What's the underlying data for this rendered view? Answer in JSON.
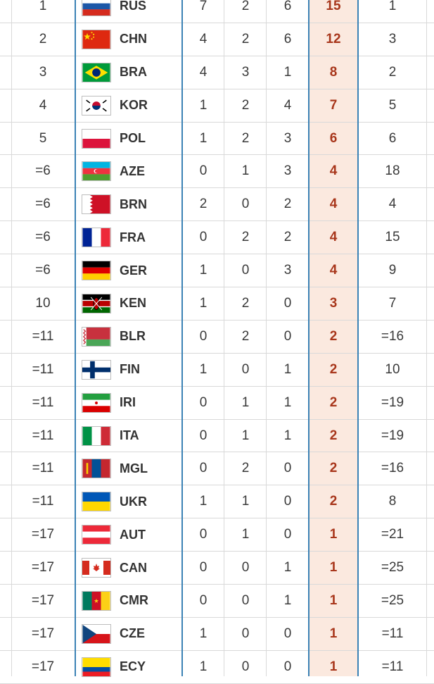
{
  "colors": {
    "divider_blue": "#3b82b5",
    "total_text": "#a8361b",
    "total_bg": "#fbe9df"
  },
  "rows": [
    {
      "rank": "1",
      "code": "RUS",
      "flag": "russia-flag",
      "gold": "7",
      "silver": "2",
      "bronze": "6",
      "total": "15",
      "prev": "1"
    },
    {
      "rank": "2",
      "code": "CHN",
      "flag": "china-flag",
      "gold": "4",
      "silver": "2",
      "bronze": "6",
      "total": "12",
      "prev": "3"
    },
    {
      "rank": "3",
      "code": "BRA",
      "flag": "brazil-flag",
      "gold": "4",
      "silver": "3",
      "bronze": "1",
      "total": "8",
      "prev": "2"
    },
    {
      "rank": "4",
      "code": "KOR",
      "flag": "korea-flag",
      "gold": "1",
      "silver": "2",
      "bronze": "4",
      "total": "7",
      "prev": "5"
    },
    {
      "rank": "5",
      "code": "POL",
      "flag": "poland-flag",
      "gold": "1",
      "silver": "2",
      "bronze": "3",
      "total": "6",
      "prev": "6"
    },
    {
      "rank": "=6",
      "code": "AZE",
      "flag": "azerbaijan-flag",
      "gold": "0",
      "silver": "1",
      "bronze": "3",
      "total": "4",
      "prev": "18"
    },
    {
      "rank": "=6",
      "code": "BRN",
      "flag": "bahrain-flag",
      "gold": "2",
      "silver": "0",
      "bronze": "2",
      "total": "4",
      "prev": "4"
    },
    {
      "rank": "=6",
      "code": "FRA",
      "flag": "france-flag",
      "gold": "0",
      "silver": "2",
      "bronze": "2",
      "total": "4",
      "prev": "15"
    },
    {
      "rank": "=6",
      "code": "GER",
      "flag": "germany-flag",
      "gold": "1",
      "silver": "0",
      "bronze": "3",
      "total": "4",
      "prev": "9"
    },
    {
      "rank": "10",
      "code": "KEN",
      "flag": "kenya-flag",
      "gold": "1",
      "silver": "2",
      "bronze": "0",
      "total": "3",
      "prev": "7"
    },
    {
      "rank": "=11",
      "code": "BLR",
      "flag": "belarus-flag",
      "gold": "0",
      "silver": "2",
      "bronze": "0",
      "total": "2",
      "prev": "=16"
    },
    {
      "rank": "=11",
      "code": "FIN",
      "flag": "finland-flag",
      "gold": "1",
      "silver": "0",
      "bronze": "1",
      "total": "2",
      "prev": "10"
    },
    {
      "rank": "=11",
      "code": "IRI",
      "flag": "iran-flag",
      "gold": "0",
      "silver": "1",
      "bronze": "1",
      "total": "2",
      "prev": "=19"
    },
    {
      "rank": "=11",
      "code": "ITA",
      "flag": "italy-flag",
      "gold": "0",
      "silver": "1",
      "bronze": "1",
      "total": "2",
      "prev": "=19"
    },
    {
      "rank": "=11",
      "code": "MGL",
      "flag": "mongolia-flag",
      "gold": "0",
      "silver": "2",
      "bronze": "0",
      "total": "2",
      "prev": "=16"
    },
    {
      "rank": "=11",
      "code": "UKR",
      "flag": "ukraine-flag",
      "gold": "1",
      "silver": "1",
      "bronze": "0",
      "total": "2",
      "prev": "8"
    },
    {
      "rank": "=17",
      "code": "AUT",
      "flag": "austria-flag",
      "gold": "0",
      "silver": "1",
      "bronze": "0",
      "total": "1",
      "prev": "=21"
    },
    {
      "rank": "=17",
      "code": "CAN",
      "flag": "canada-flag",
      "gold": "0",
      "silver": "0",
      "bronze": "1",
      "total": "1",
      "prev": "=25"
    },
    {
      "rank": "=17",
      "code": "CMR",
      "flag": "cameroon-flag",
      "gold": "0",
      "silver": "0",
      "bronze": "1",
      "total": "1",
      "prev": "=25"
    },
    {
      "rank": "=17",
      "code": "CZE",
      "flag": "czech-flag",
      "gold": "1",
      "silver": "0",
      "bronze": "0",
      "total": "1",
      "prev": "=11"
    },
    {
      "rank": "=17",
      "code": "ECY",
      "flag": "ecuador-flag",
      "gold": "1",
      "silver": "0",
      "bronze": "0",
      "total": "1",
      "prev": "=11"
    }
  ]
}
